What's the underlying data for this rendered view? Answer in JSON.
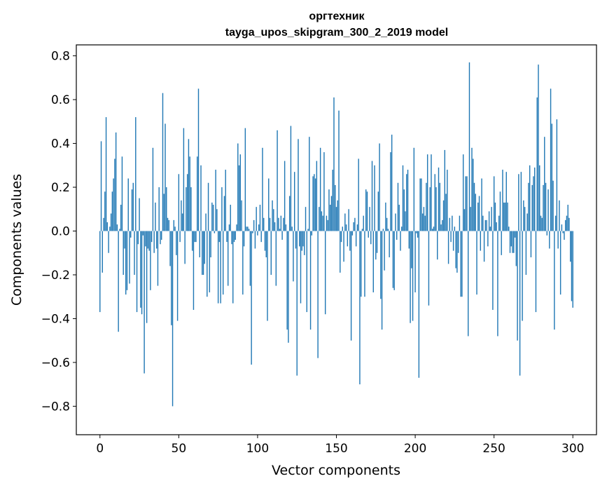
{
  "chart_data": {
    "type": "bar",
    "title": "оргтехник",
    "subtitle": "tayga_upos_skipgram_300_2_2019 model",
    "xlabel": "Vector components",
    "ylabel": "Components values",
    "xlim": [
      -15,
      315
    ],
    "ylim": [
      -0.93,
      0.85
    ],
    "xticks": [
      0,
      50,
      100,
      150,
      200,
      250,
      300
    ],
    "yticks": [
      -0.8,
      -0.6,
      -0.4,
      -0.2,
      0.0,
      0.2,
      0.4,
      0.6,
      0.8
    ],
    "ytick_labels": [
      "−0.8",
      "−0.6",
      "−0.4",
      "−0.2",
      "0.0",
      "0.2",
      "0.4",
      "0.6",
      "0.8"
    ],
    "bar_color": "#1f77b4",
    "series": [
      {
        "name": "оргтехник",
        "values": [
          -0.37,
          0.41,
          -0.19,
          0.06,
          0.18,
          0.52,
          0.04,
          -0.1,
          0.02,
          0.08,
          0.18,
          0.24,
          0.33,
          0.45,
          0.03,
          -0.46,
          0.01,
          0.12,
          0.34,
          -0.2,
          -0.08,
          -0.29,
          -0.27,
          0.24,
          -0.24,
          -0.03,
          0.19,
          0.22,
          -0.2,
          0.52,
          -0.37,
          -0.06,
          0.15,
          -0.35,
          -0.38,
          -0.02,
          -0.65,
          -0.07,
          -0.42,
          -0.08,
          -0.09,
          -0.27,
          -0.05,
          0.38,
          -0.1,
          0.13,
          -0.08,
          -0.25,
          0.2,
          -0.06,
          -0.04,
          0.63,
          0.17,
          0.49,
          0.2,
          0.06,
          0.05,
          -0.16,
          -0.43,
          -0.8,
          0.05,
          0.02,
          -0.11,
          -0.41,
          0.26,
          -0.05,
          0.14,
          0.08,
          0.47,
          -0.15,
          0.2,
          0.26,
          0.42,
          0.34,
          0.2,
          -0.09,
          -0.36,
          -0.05,
          -0.05,
          0.34,
          0.65,
          -0.12,
          0.3,
          -0.2,
          -0.2,
          -0.15,
          0.08,
          -0.3,
          0.22,
          -0.28,
          -0.12,
          0.13,
          0.12,
          -0.01,
          0.28,
          0.1,
          -0.33,
          -0.05,
          -0.33,
          0.2,
          -0.29,
          0.16,
          0.28,
          -0.05,
          -0.25,
          0.03,
          0.12,
          -0.06,
          -0.33,
          -0.05,
          -0.04,
          0.03,
          0.4,
          0.3,
          0.35,
          0.14,
          -0.29,
          -0.07,
          0.47,
          0.02,
          0.02,
          0.01,
          -0.25,
          -0.61,
          -0.01,
          0.05,
          -0.08,
          0.11,
          -0.02,
          0.03,
          0.12,
          -0.05,
          0.38,
          0.06,
          -0.09,
          -0.12,
          -0.41,
          0.24,
          0.06,
          -0.2,
          0.14,
          0.1,
          0.04,
          -0.25,
          0.46,
          0.06,
          0.01,
          0.07,
          -0.04,
          0.06,
          0.32,
          0.03,
          -0.45,
          -0.51,
          0.16,
          0.48,
          0.02,
          -0.23,
          0.27,
          -0.08,
          -0.66,
          0.42,
          -0.07,
          -0.33,
          -0.09,
          -0.07,
          -0.11,
          0.11,
          -0.37,
          0.01,
          0.43,
          -0.45,
          -0.02,
          0.25,
          0.26,
          0.24,
          0.32,
          -0.58,
          0.11,
          0.38,
          0.09,
          0.07,
          0.36,
          -0.38,
          0.07,
          0.05,
          0.19,
          0.12,
          0.16,
          0.28,
          0.61,
          0.21,
          0.11,
          0.14,
          0.55,
          -0.19,
          -0.05,
          0.02,
          -0.14,
          0.08,
          0.03,
          -0.07,
          0.1,
          -0.09,
          -0.5,
          -0.02,
          0.04,
          0.06,
          -0.07,
          0.03,
          0.33,
          -0.7,
          -0.3,
          0.01,
          0.07,
          -0.3,
          0.19,
          0.18,
          -0.03,
          0.11,
          -0.06,
          0.32,
          -0.28,
          0.3,
          -0.13,
          -0.1,
          0.18,
          0.4,
          -0.31,
          -0.45,
          0.01,
          -0.18,
          0.13,
          0.06,
          0.01,
          -0.12,
          0.36,
          0.44,
          -0.26,
          -0.27,
          0.08,
          -0.04,
          0.22,
          0.12,
          -0.09,
          0.02,
          0.3,
          0.19,
          0.09,
          0.26,
          0.28,
          -0.08,
          -0.42,
          -0.17,
          -0.41,
          0.38,
          -0.28,
          -0.01,
          -0.03,
          -0.67,
          0.24,
          0.24,
          0.08,
          0.11,
          0.07,
          0.22,
          0.35,
          -0.34,
          0.2,
          0.35,
          0.01,
          0.02,
          0.26,
          0.2,
          -0.13,
          0.29,
          0.22,
          0.03,
          0.05,
          0.14,
          0.37,
          0.17,
          0.28,
          -0.15,
          0.06,
          -0.05,
          0.07,
          -0.09,
          0.02,
          -0.17,
          -0.19,
          -0.1,
          0.07,
          -0.3,
          -0.3,
          0.35,
          0.1,
          0.25,
          0.25,
          -0.48,
          0.77,
          0.11,
          0.38,
          0.33,
          0.22,
          0.17,
          -0.29,
          0.13,
          0.16,
          -0.09,
          0.24,
          0.07,
          -0.14,
          0.05,
          0.05,
          -0.07,
          0.09,
          0.02,
          0.11,
          -0.36,
          0.25,
          0.13,
          0.04,
          -0.48,
          0.07,
          0.18,
          -0.11,
          0.28,
          0.13,
          0.13,
          0.27,
          0.13,
          0.02,
          -0.1,
          -0.07,
          -0.1,
          -0.1,
          -0.03,
          -0.16,
          -0.5,
          0.26,
          -0.66,
          0.27,
          -0.41,
          0.14,
          0.11,
          -0.2,
          0.08,
          0.22,
          0.3,
          -0.12,
          0.21,
          0.25,
          0.29,
          -0.37,
          0.61,
          0.76,
          0.3,
          0.07,
          0.06,
          0.21,
          0.43,
          0.22,
          -0.02,
          0.19,
          -0.08,
          0.65,
          0.49,
          0.23,
          -0.45,
          0.07,
          0.51,
          -0.08,
          0.14,
          -0.29,
          0.03,
          -0.01,
          -0.04,
          0.05,
          0.07,
          0.12,
          0.06,
          -0.14,
          -0.32,
          -0.35
        ]
      }
    ]
  }
}
